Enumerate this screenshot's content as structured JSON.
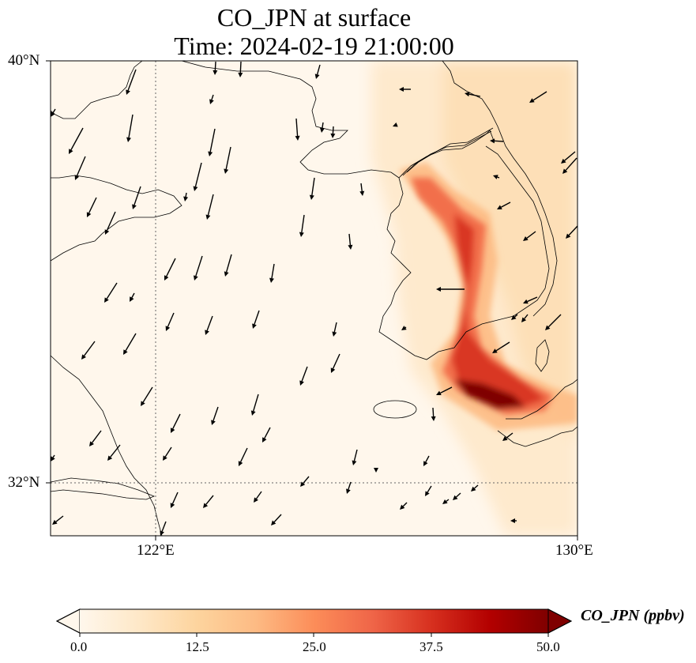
{
  "title": {
    "line1": "CO_JPN at surface",
    "line2": "Time: 2024-02-19 21:00:00"
  },
  "map": {
    "lat_ticks": [
      "40°N",
      "32°N"
    ],
    "lon_ticks": [
      "122°E",
      "130°E"
    ],
    "extent": {
      "lon_min": 120.0,
      "lon_max": 130.0,
      "lat_min": 31.0,
      "lat_max": 40.0
    },
    "gridlines": "dotted",
    "field": "CO_JPN",
    "units": "ppbv"
  },
  "colorbar": {
    "label": "CO_JPN (ppbv)",
    "ticks": [
      "0.0",
      "12.5",
      "25.0",
      "37.5",
      "50.0"
    ],
    "min": 0.0,
    "max": 50.0,
    "extend": "both",
    "colormap": "OrRd",
    "colors": [
      "#fff7ec",
      "#fee8c8",
      "#fdd49e",
      "#fdbb84",
      "#fc8d59",
      "#ef6548",
      "#d7301f",
      "#b30000",
      "#7f0000"
    ]
  }
}
